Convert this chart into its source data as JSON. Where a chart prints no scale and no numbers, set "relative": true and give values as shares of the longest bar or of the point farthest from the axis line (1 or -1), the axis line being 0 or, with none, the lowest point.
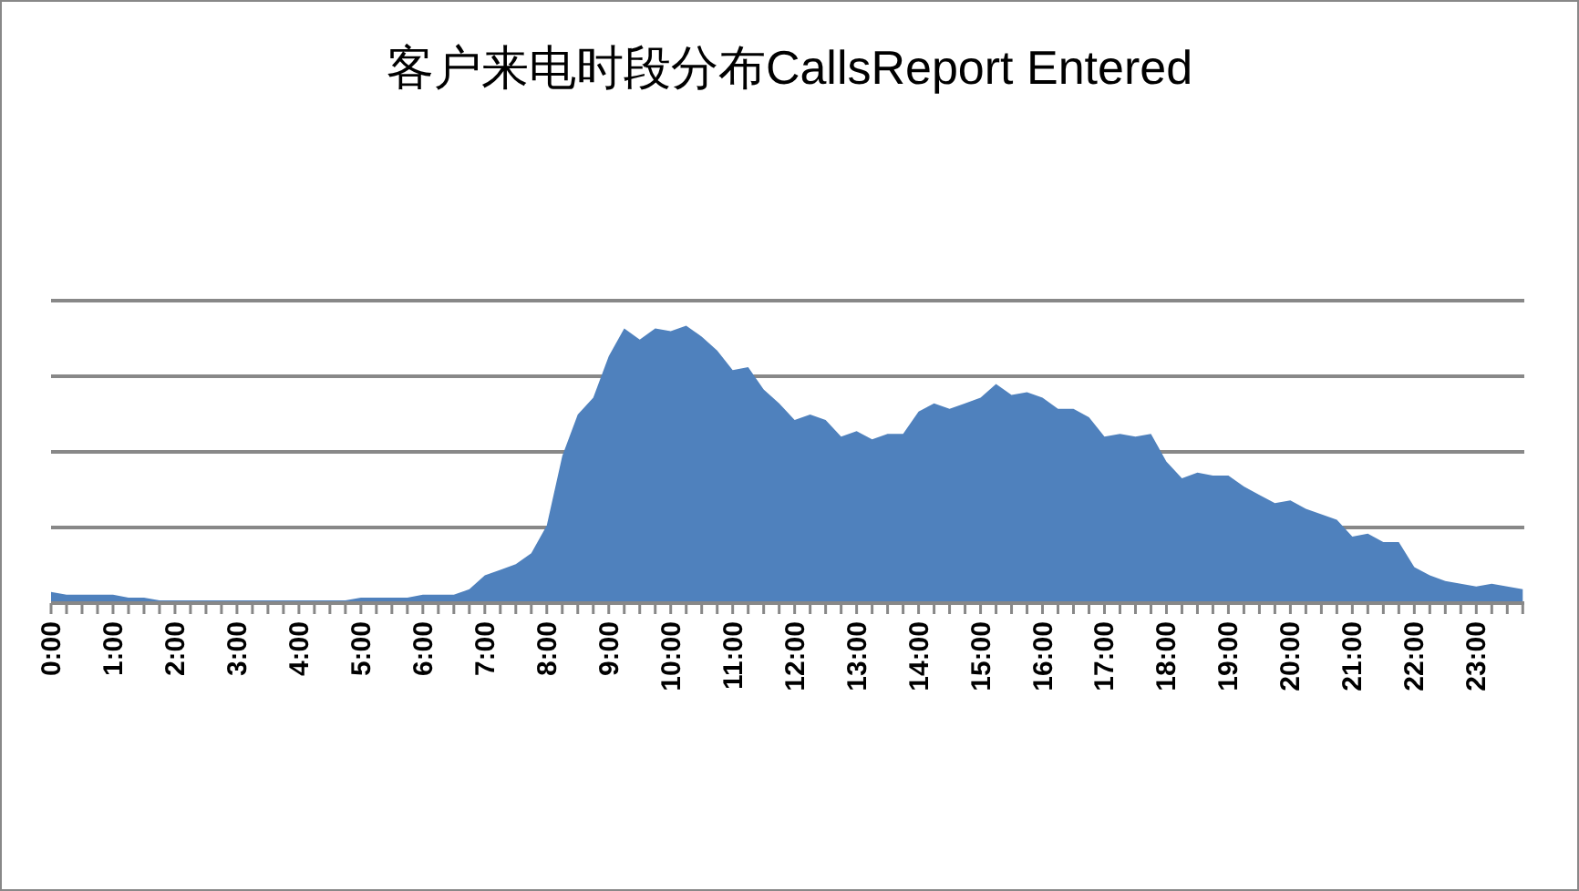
{
  "chart_data": {
    "type": "area",
    "title": "客户来电时段分布CallsReport Entered",
    "relative": true,
    "grid": "y",
    "categories": [
      "0:00",
      null,
      null,
      null,
      "1:00",
      null,
      null,
      null,
      "2:00",
      null,
      null,
      null,
      "3:00",
      null,
      null,
      null,
      "4:00",
      null,
      null,
      null,
      "5:00",
      null,
      null,
      null,
      "6:00",
      null,
      null,
      null,
      "7:00",
      null,
      null,
      null,
      "8:00",
      null,
      null,
      null,
      "9:00",
      null,
      null,
      null,
      "10:00",
      null,
      null,
      null,
      "11:00",
      null,
      null,
      null,
      "12:00",
      null,
      null,
      null,
      "13:00",
      null,
      null,
      null,
      "14:00",
      null,
      null,
      null,
      "15:00",
      null,
      null,
      null,
      "16:00",
      null,
      null,
      null,
      "17:00",
      null,
      null,
      null,
      "18:00",
      null,
      null,
      null,
      "19:00",
      null,
      null,
      null,
      "20:00",
      null,
      null,
      null,
      "21:00",
      null,
      null,
      null,
      "22:00",
      null,
      null,
      null,
      "23:00",
      null,
      null,
      null
    ],
    "series": [
      {
        "color": "#4f81bd",
        "values": [
          0.04,
          0.03,
          0.03,
          0.03,
          0.03,
          0.02,
          0.02,
          0.01,
          0.01,
          0.01,
          0.01,
          0.01,
          0.01,
          0.01,
          0.01,
          0.01,
          0.01,
          0.01,
          0.01,
          0.01,
          0.02,
          0.02,
          0.02,
          0.02,
          0.03,
          0.03,
          0.03,
          0.05,
          0.1,
          0.12,
          0.14,
          0.18,
          0.28,
          0.53,
          0.68,
          0.74,
          0.89,
          0.99,
          0.95,
          0.99,
          0.98,
          1.0,
          0.96,
          0.91,
          0.84,
          0.85,
          0.77,
          0.72,
          0.66,
          0.68,
          0.66,
          0.6,
          0.62,
          0.59,
          0.61,
          0.61,
          0.69,
          0.72,
          0.7,
          0.72,
          0.74,
          0.79,
          0.75,
          0.76,
          0.74,
          0.7,
          0.7,
          0.67,
          0.6,
          0.61,
          0.6,
          0.61,
          0.51,
          0.45,
          0.47,
          0.46,
          0.46,
          0.42,
          0.39,
          0.36,
          0.37,
          0.34,
          0.32,
          0.3,
          0.24,
          0.25,
          0.22,
          0.22,
          0.13,
          0.1,
          0.08,
          0.07,
          0.06,
          0.07,
          0.06,
          0.05
        ]
      }
    ]
  }
}
